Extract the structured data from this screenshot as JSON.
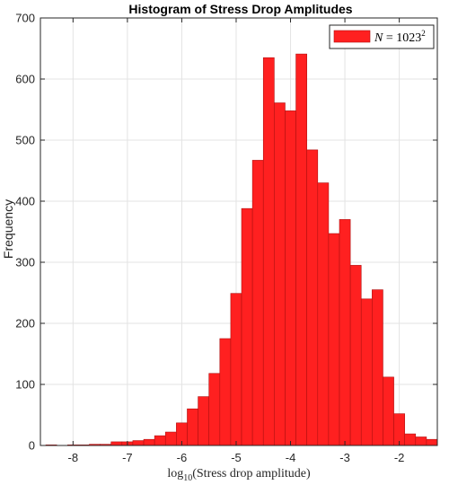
{
  "chart_data": {
    "type": "bar",
    "title": "Histogram of Stress Drop Amplitudes",
    "xlabel": {
      "prefix": "log",
      "subscript": "10",
      "suffix": "(Stress drop amplitude)"
    },
    "ylabel": "Frequency",
    "xlim": [
      -8.6,
      -1.3
    ],
    "ylim": [
      0,
      700
    ],
    "xticks": [
      -8,
      -7,
      -6,
      -5,
      -4,
      -3,
      -2
    ],
    "xtick_labels": [
      "-8",
      "-7",
      "-6",
      "-5",
      "-4",
      "-3",
      "-2"
    ],
    "yticks": [
      0,
      100,
      200,
      300,
      400,
      500,
      600,
      700
    ],
    "ytick_labels": [
      "0",
      "100",
      "200",
      "300",
      "400",
      "500",
      "600",
      "700"
    ],
    "grid": true,
    "legend_position": "top-right",
    "legend": {
      "lhs": "N",
      "eq": " = ",
      "base": "1023",
      "exp": "2"
    },
    "bar_color": "#ff2020",
    "bin_width": 0.2,
    "bins": [
      {
        "x0": -8.5,
        "count": 1
      },
      {
        "x0": -8.3,
        "count": 0
      },
      {
        "x0": -8.1,
        "count": 1
      },
      {
        "x0": -7.9,
        "count": 1
      },
      {
        "x0": -7.7,
        "count": 2
      },
      {
        "x0": -7.5,
        "count": 2
      },
      {
        "x0": -7.3,
        "count": 6
      },
      {
        "x0": -7.1,
        "count": 6
      },
      {
        "x0": -6.9,
        "count": 8
      },
      {
        "x0": -6.7,
        "count": 10
      },
      {
        "x0": -6.5,
        "count": 16
      },
      {
        "x0": -6.3,
        "count": 22
      },
      {
        "x0": -6.1,
        "count": 37
      },
      {
        "x0": -5.9,
        "count": 60
      },
      {
        "x0": -5.7,
        "count": 80
      },
      {
        "x0": -5.5,
        "count": 118
      },
      {
        "x0": -5.3,
        "count": 175
      },
      {
        "x0": -5.1,
        "count": 249
      },
      {
        "x0": -4.9,
        "count": 388
      },
      {
        "x0": -4.7,
        "count": 467
      },
      {
        "x0": -4.5,
        "count": 635
      },
      {
        "x0": -4.3,
        "count": 561
      },
      {
        "x0": -4.1,
        "count": 548
      },
      {
        "x0": -3.9,
        "count": 641
      },
      {
        "x0": -3.7,
        "count": 484
      },
      {
        "x0": -3.5,
        "count": 430
      },
      {
        "x0": -3.3,
        "count": 347
      },
      {
        "x0": -3.1,
        "count": 370
      },
      {
        "x0": -2.9,
        "count": 295
      },
      {
        "x0": -2.7,
        "count": 240
      },
      {
        "x0": -2.5,
        "count": 255
      },
      {
        "x0": -2.3,
        "count": 112
      },
      {
        "x0": -2.1,
        "count": 52
      },
      {
        "x0": -1.9,
        "count": 19
      },
      {
        "x0": -1.7,
        "count": 14
      },
      {
        "x0": -1.5,
        "count": 10
      }
    ]
  }
}
